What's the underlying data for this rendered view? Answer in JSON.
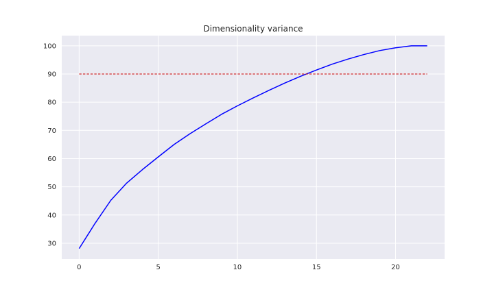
{
  "chart_data": {
    "type": "line",
    "title": "Dimensionality variance",
    "xlabel": "",
    "ylabel": "",
    "xlim": [
      -1.1,
      23.1
    ],
    "ylim": [
      24.4,
      103.6
    ],
    "x_ticks": [
      0,
      5,
      10,
      15,
      20
    ],
    "y_ticks": [
      30,
      40,
      50,
      60,
      70,
      80,
      90,
      100
    ],
    "grid": true,
    "legend": "none",
    "background_color": "#eaeaf2",
    "grid_color": "#ffffff",
    "series": [
      {
        "color": "#0000ff",
        "style": "solid",
        "x": [
          0,
          1,
          2,
          3,
          4,
          5,
          6,
          7,
          8,
          9,
          10,
          11,
          12,
          13,
          14,
          15,
          16,
          17,
          18,
          19,
          20,
          21,
          22
        ],
        "y": [
          28.1,
          37.0,
          45.2,
          51.3,
          56.1,
          60.6,
          65.0,
          68.8,
          72.3,
          75.7,
          78.7,
          81.5,
          84.2,
          86.8,
          89.2,
          91.4,
          93.5,
          95.3,
          96.9,
          98.3,
          99.3,
          100.0,
          100.0
        ]
      },
      {
        "color": "#cc0000",
        "style": "dashed",
        "x": [
          0,
          22
        ],
        "y": [
          90,
          90
        ]
      }
    ]
  }
}
